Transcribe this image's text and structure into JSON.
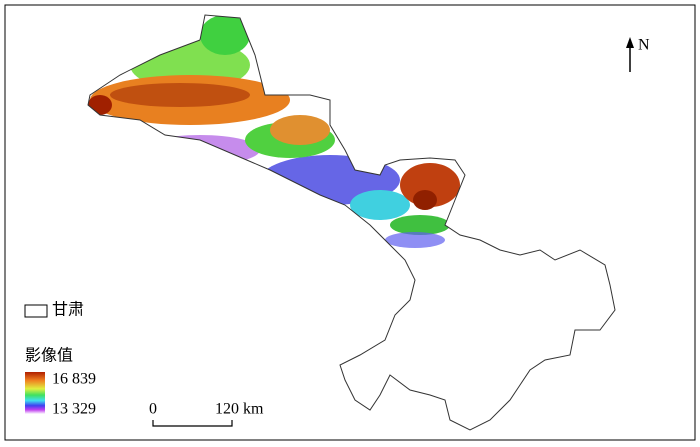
{
  "north_arrow": "N",
  "legend": {
    "region": "甘肃",
    "title": "影像值",
    "max": "16 839",
    "min": "13 329"
  },
  "scale_bar": {
    "start": "0",
    "end": "120 km"
  }
}
